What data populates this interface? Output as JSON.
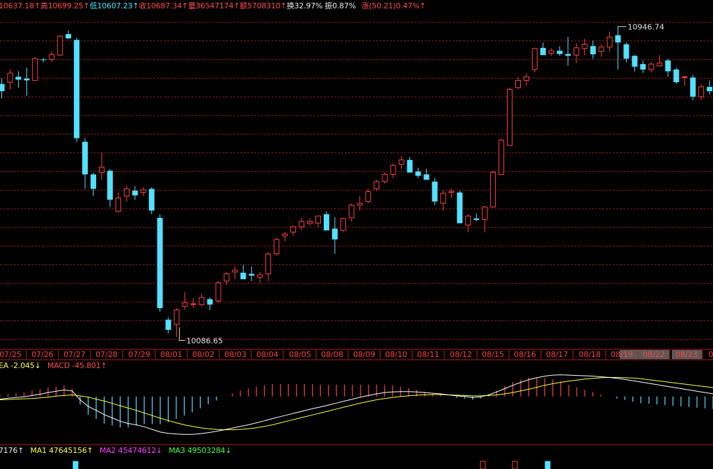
{
  "info_bar": {
    "open": "10637.18↑",
    "high_label": "高",
    "high": "10699.25↑",
    "low_label": "低",
    "low": "10607.23↑",
    "close_label": "收",
    "close": "10687.34↑",
    "volume_label": "量",
    "volume": "36547174↑",
    "amount_label": "额",
    "amount": "5708310↑",
    "turnover_label": "换",
    "turnover": "32.97%",
    "amplitude_label": "振",
    "amplitude": "0.87%",
    "change_label": "涨",
    "change": "(50.21)0.47%↑"
  },
  "macd_bar": {
    "dea": "EA -2.045↓",
    "macd": "MACD -45.801↑"
  },
  "vol_bar": {
    "vol": "7176↑",
    "ma1": "MA1 47645156↑",
    "ma2": "MA2 45474612↓",
    "ma3": "MA3 49503284↓"
  },
  "colors": {
    "up": "#ff4040",
    "down": "#54e0ff",
    "grid": "#8a1a1a",
    "axis_text": "#ff4040",
    "dif": "#ffffff",
    "dea": "#ffff40"
  },
  "chart_data": {
    "type": "candlestick",
    "title": "",
    "y_range": [
      10060,
      10980
    ],
    "annotations": [
      {
        "label": "10946.74",
        "type": "high"
      },
      {
        "label": "10086.65",
        "type": "low"
      }
    ],
    "date_labels": [
      "07/25",
      "07/26",
      "07/27",
      "07/28",
      "07/29",
      "08/01",
      "08/02",
      "08/03",
      "08/04",
      "08/05",
      "08/08",
      "08/09",
      "08/10",
      "08/11",
      "08/12",
      "08/15",
      "08/16",
      "08/17",
      "08/18",
      "08/19",
      "08/22",
      "08/23",
      "0"
    ],
    "candles": [
      [
        10790,
        10805,
        10750,
        10770
      ],
      [
        10795,
        10830,
        10775,
        10820
      ],
      [
        10810,
        10825,
        10780,
        10802
      ],
      [
        10805,
        10835,
        10758,
        10800
      ],
      [
        10800,
        10865,
        10800,
        10860
      ],
      [
        10858,
        10862,
        10850,
        10856
      ],
      [
        10858,
        10880,
        10850,
        10872
      ],
      [
        10870,
        10925,
        10868,
        10922
      ],
      [
        10928,
        10938,
        10915,
        10916
      ],
      [
        10912,
        10918,
        10630,
        10640
      ],
      [
        10630,
        10640,
        10500,
        10540
      ],
      [
        10540,
        10545,
        10480,
        10500
      ],
      [
        10545,
        10600,
        10525,
        10560
      ],
      [
        10550,
        10555,
        10450,
        10470
      ],
      [
        10438,
        10490,
        10435,
        10475
      ],
      [
        10480,
        10510,
        10465,
        10500
      ],
      [
        10495,
        10508,
        10470,
        10482
      ],
      [
        10490,
        10505,
        10480,
        10497
      ],
      [
        10500,
        10505,
        10430,
        10440
      ],
      [
        10420,
        10430,
        10160,
        10170
      ],
      [
        10138,
        10145,
        10100,
        10110
      ],
      [
        10125,
        10170,
        10090,
        10165
      ],
      [
        10175,
        10215,
        10165,
        10185
      ],
      [
        10180,
        10198,
        10170,
        10182
      ],
      [
        10180,
        10210,
        10175,
        10200
      ],
      [
        10195,
        10200,
        10165,
        10180
      ],
      [
        10190,
        10245,
        10185,
        10240
      ],
      [
        10245,
        10270,
        10235,
        10265
      ],
      [
        10270,
        10285,
        10250,
        10275
      ],
      [
        10268,
        10290,
        10250,
        10250
      ],
      [
        10265,
        10285,
        10245,
        10260
      ],
      [
        10255,
        10270,
        10240,
        10262
      ],
      [
        10265,
        10325,
        10245,
        10320
      ],
      [
        10320,
        10365,
        10315,
        10360
      ],
      [
        10370,
        10380,
        10355,
        10375
      ],
      [
        10380,
        10398,
        10370,
        10395
      ],
      [
        10395,
        10420,
        10385,
        10410
      ],
      [
        10405,
        10418,
        10398,
        10410
      ],
      [
        10405,
        10425,
        10395,
        10425
      ],
      [
        10430,
        10438,
        10385,
        10385
      ],
      [
        10390,
        10422,
        10320,
        10360
      ],
      [
        10385,
        10420,
        10380,
        10418
      ],
      [
        10420,
        10460,
        10410,
        10455
      ],
      [
        10455,
        10480,
        10440,
        10460
      ],
      [
        10465,
        10500,
        10460,
        10492
      ],
      [
        10500,
        10525,
        10495,
        10520
      ],
      [
        10520,
        10545,
        10515,
        10540
      ],
      [
        10540,
        10570,
        10530,
        10565
      ],
      [
        10568,
        10590,
        10555,
        10580
      ],
      [
        10580,
        10588,
        10545,
        10545
      ],
      [
        10548,
        10558,
        10530,
        10536
      ],
      [
        10540,
        10555,
        10525,
        10525
      ],
      [
        10520,
        10530,
        10455,
        10465
      ],
      [
        10460,
        10495,
        10440,
        10488
      ],
      [
        10490,
        10500,
        10475,
        10493
      ],
      [
        10490,
        10495,
        10405,
        10405
      ],
      [
        10400,
        10430,
        10380,
        10425
      ],
      [
        10418,
        10432,
        10410,
        10414
      ],
      [
        10415,
        10452,
        10380,
        10450
      ],
      [
        10450,
        10550,
        10448,
        10546
      ],
      [
        10540,
        10640,
        10538,
        10635
      ],
      [
        10620,
        10780,
        10618,
        10775
      ],
      [
        10780,
        10810,
        10775,
        10800
      ],
      [
        10800,
        10820,
        10785,
        10810
      ],
      [
        10830,
        10890,
        10822,
        10888
      ],
      [
        10890,
        10905,
        10870,
        10870
      ],
      [
        10875,
        10890,
        10868,
        10882
      ],
      [
        10882,
        10895,
        10868,
        10873
      ],
      [
        10873,
        10920,
        10840,
        10868
      ],
      [
        10870,
        10902,
        10848,
        10890
      ],
      [
        10888,
        10915,
        10870,
        10900
      ],
      [
        10895,
        10910,
        10860,
        10872
      ],
      [
        10880,
        10900,
        10865,
        10892
      ],
      [
        10892,
        10935,
        10880,
        10920
      ],
      [
        10925,
        10946.74,
        10830,
        10905
      ],
      [
        10900,
        10905,
        10850,
        10860
      ],
      [
        10868,
        10870,
        10825,
        10838
      ],
      [
        10845,
        10855,
        10820,
        10830
      ],
      [
        10830,
        10850,
        10822,
        10845
      ],
      [
        10840,
        10870,
        10838,
        10848
      ],
      [
        10855,
        10860,
        10810,
        10825
      ],
      [
        10830,
        10835,
        10790,
        10795
      ],
      [
        10808,
        10812,
        10785,
        10810
      ],
      [
        10808,
        10815,
        10745,
        10755
      ],
      [
        10755,
        10790,
        10745,
        10782
      ],
      [
        10782,
        10800,
        10760,
        10770
      ],
      [
        10775,
        10780,
        10740,
        10755
      ],
      [
        10748,
        10768,
        10700,
        10740
      ],
      [
        10745,
        10770,
        10730,
        10768
      ],
      [
        10765,
        10790,
        10748,
        10785
      ]
    ],
    "macd": {
      "y_range": [
        -140,
        80
      ],
      "dif": [
        -8,
        -5,
        -3,
        -1,
        3,
        7,
        12,
        16,
        20,
        17,
        -10,
        -30,
        -42,
        -55,
        -65,
        -75,
        -82,
        -86,
        -92,
        -100,
        -108,
        -112,
        -114,
        -115,
        -115,
        -113,
        -110,
        -106,
        -101,
        -96,
        -91,
        -86,
        -80,
        -74,
        -67,
        -61,
        -55,
        -49,
        -43,
        -37,
        -32,
        -26,
        -20,
        -14,
        -8,
        -2,
        3,
        8,
        12,
        14,
        15,
        15,
        14,
        12,
        10,
        8,
        5,
        2,
        0,
        -3,
        -1,
        5,
        14,
        24,
        34,
        43,
        51,
        57,
        62,
        65,
        66,
        65,
        64,
        63,
        62,
        60,
        58,
        55,
        52,
        48,
        44,
        40,
        36,
        32,
        28,
        24,
        20,
        16,
        12,
        8
      ],
      "dea": [
        -10,
        -9,
        -8,
        -7,
        -6,
        -4,
        -2,
        1,
        3,
        5,
        2,
        -2,
        -8,
        -14,
        -21,
        -28,
        -35,
        -42,
        -50,
        -58,
        -66,
        -73,
        -80,
        -86,
        -91,
        -95,
        -98,
        -100,
        -101,
        -101,
        -100,
        -98,
        -95,
        -91,
        -86,
        -80,
        -74,
        -68,
        -62,
        -56,
        -50,
        -44,
        -38,
        -32,
        -26,
        -20,
        -15,
        -10,
        -6,
        -3,
        0,
        2,
        4,
        5,
        6,
        6,
        5,
        4,
        3,
        2,
        2,
        3,
        5,
        8,
        12,
        17,
        22,
        28,
        34,
        39,
        43,
        47,
        50,
        53,
        55,
        57,
        58,
        58,
        57,
        56,
        54,
        51,
        48,
        45,
        42,
        39,
        36,
        33,
        30,
        27
      ]
    }
  }
}
